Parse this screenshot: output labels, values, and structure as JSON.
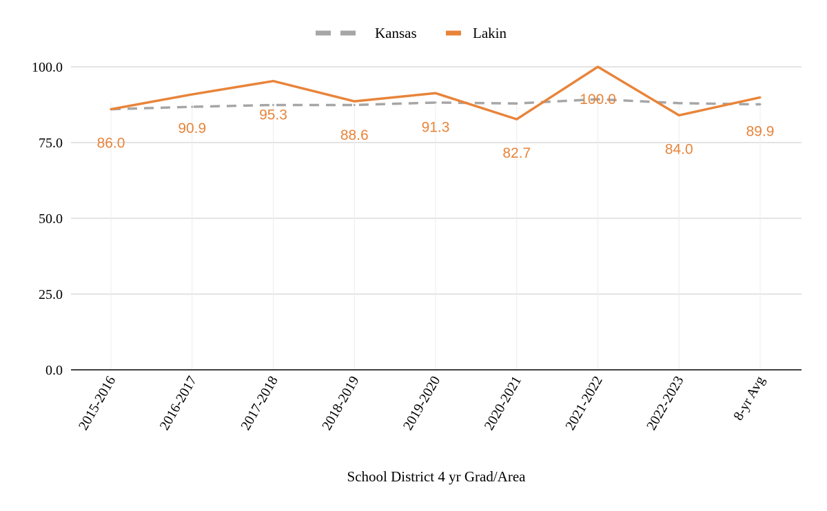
{
  "chart_data": {
    "type": "line",
    "title": "",
    "xlabel": "School District 4 yr Grad/Area",
    "ylabel": "",
    "categories": [
      "2015-2016",
      "2016-2017",
      "2017-2018",
      "2018-2019",
      "2019-2020",
      "2020-2021",
      "2021-2022",
      "2022-2023",
      "8-yr Avg"
    ],
    "ylim": [
      0,
      100
    ],
    "yticks": [
      "0.0",
      "25.0",
      "50.0",
      "75.0",
      "100.0"
    ],
    "ytick_values": [
      0,
      25,
      50,
      75,
      100
    ],
    "grid": true,
    "legend_position": "top-center",
    "series": [
      {
        "name": "Kansas",
        "color": "#a6a6a6",
        "style": "dashed",
        "values": [
          86.0,
          86.8,
          87.4,
          87.4,
          88.2,
          87.9,
          89.3,
          88.0,
          87.6
        ]
      },
      {
        "name": "Lakin",
        "color": "#e8843a",
        "style": "solid",
        "values": [
          86.0,
          90.9,
          95.3,
          88.6,
          91.3,
          82.7,
          100.0,
          84.0,
          89.9
        ],
        "data_labels": [
          "86.0",
          "90.9",
          "95.3",
          "88.6",
          "91.3",
          "82.7",
          "100.0",
          "84.0",
          "89.9"
        ]
      }
    ]
  }
}
